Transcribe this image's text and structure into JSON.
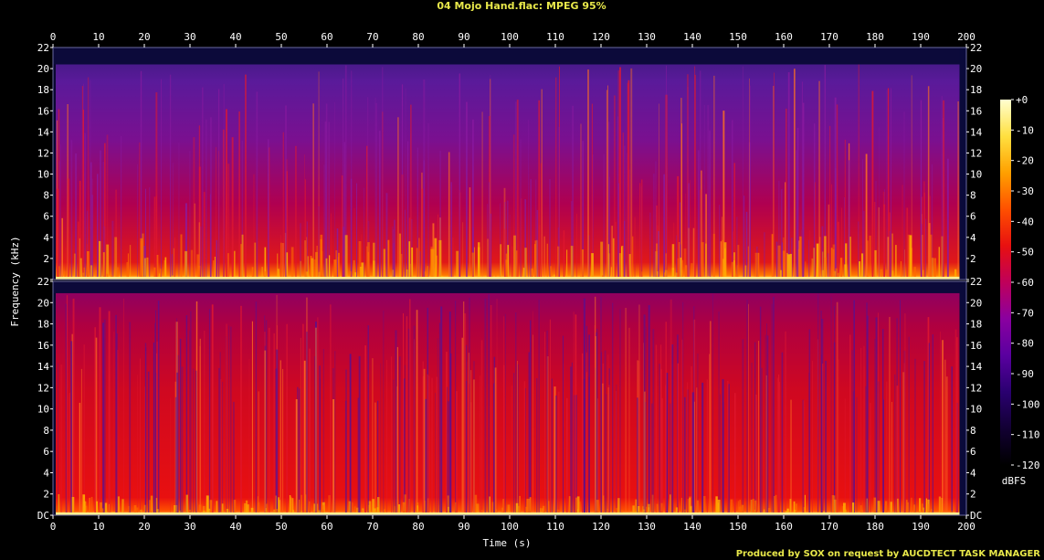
{
  "chart_data": {
    "type": "heatmap",
    "title": "04 Mojo Hand.flac: MPEG 95%",
    "xlabel": "Time (s)",
    "ylabel": "Frequency (kHz)",
    "xlim": [
      0,
      200
    ],
    "ylim": [
      0,
      22
    ],
    "x_ticks": [
      "0",
      "10",
      "20",
      "30",
      "40",
      "50",
      "60",
      "70",
      "80",
      "90",
      "100",
      "110",
      "120",
      "130",
      "140",
      "150",
      "160",
      "170",
      "180",
      "190",
      "200"
    ],
    "y_ticks": [
      "DC",
      "2",
      "4",
      "6",
      "8",
      "10",
      "12",
      "14",
      "16",
      "18",
      "20",
      "22"
    ],
    "channels": [
      {
        "name": "",
        "cutoff_khz": 20.4,
        "audio_end_s": 198.5
      },
      {
        "name": "",
        "cutoff_khz": 20.9,
        "audio_end_s": 198.5
      }
    ],
    "colorbar": {
      "label": "dBFS",
      "ticks": [
        "+0",
        "-10",
        "-20",
        "-30",
        "-40",
        "-50",
        "-60",
        "-70",
        "-80",
        "-90",
        "-100",
        "-110",
        "-120"
      ],
      "range": [
        -120,
        0
      ],
      "colors": [
        "#000000",
        "#120033",
        "#2a0070",
        "#5a00a0",
        "#8a00a0",
        "#c0005a",
        "#e81010",
        "#ff5000",
        "#ffa000",
        "#ffe040",
        "#ffffd0"
      ]
    },
    "credit": "Produced by SOX on request by AUCDTECT TASK MANAGER"
  }
}
